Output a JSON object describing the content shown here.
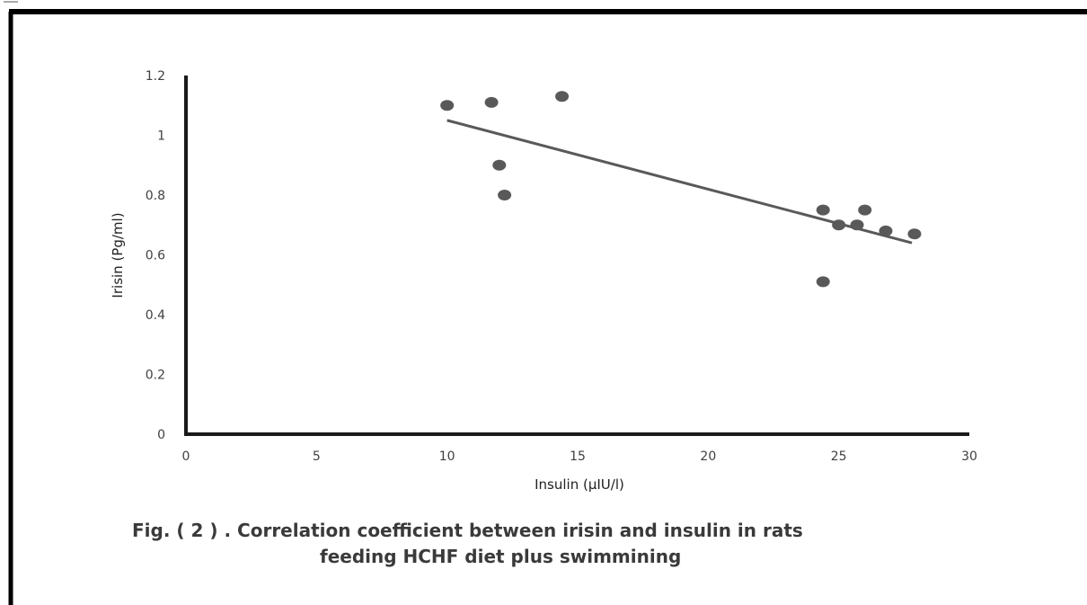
{
  "chart_data": {
    "type": "scatter",
    "xlabel": "Insulin (μIU/l)",
    "ylabel": "Irisin (Pg/ml)",
    "xlim": [
      0,
      30
    ],
    "ylim": [
      0,
      1.2
    ],
    "x_ticks": [
      "0",
      "5",
      "10",
      "15",
      "20",
      "25",
      "30"
    ],
    "y_ticks": [
      "0",
      "0.2",
      "0.4",
      "0.6",
      "0.8",
      "1",
      "1.2"
    ],
    "grid": false,
    "legend": "none",
    "series": [
      {
        "points": [
          {
            "x": 10.0,
            "y": 1.1
          },
          {
            "x": 11.7,
            "y": 1.11
          },
          {
            "x": 14.4,
            "y": 1.13
          },
          {
            "x": 12.0,
            "y": 0.9
          },
          {
            "x": 12.2,
            "y": 0.8
          },
          {
            "x": 24.4,
            "y": 0.75
          },
          {
            "x": 26.0,
            "y": 0.75
          },
          {
            "x": 25.0,
            "y": 0.7
          },
          {
            "x": 25.7,
            "y": 0.7
          },
          {
            "x": 26.8,
            "y": 0.68
          },
          {
            "x": 27.9,
            "y": 0.67
          },
          {
            "x": 24.4,
            "y": 0.51
          }
        ]
      }
    ],
    "trendline": {
      "x": [
        10.0,
        27.8
      ],
      "y": [
        1.05,
        0.64
      ]
    }
  },
  "caption": {
    "line1": "Fig. ( 2 ) . Correlation coefficient between irisin and insulin in rats",
    "line2": "feeding HCHF diet plus swimmining"
  },
  "colors": {
    "points": "#595959",
    "trendline": "#595959",
    "axis": "#1a1a1a",
    "frame": "#000000"
  }
}
